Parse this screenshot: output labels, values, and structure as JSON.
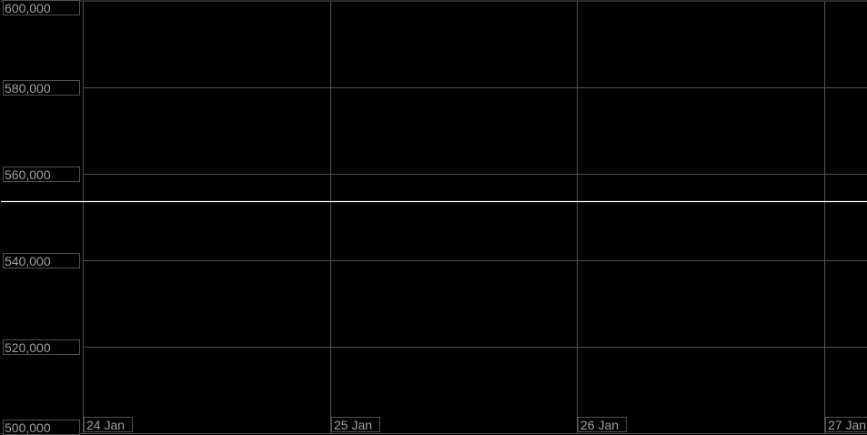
{
  "chart_data": {
    "type": "line",
    "title": "",
    "xlabel": "",
    "ylabel": "",
    "x_tick_labels": [
      "24 Jan",
      "25 Jan",
      "26 Jan",
      "27 Jan"
    ],
    "y_tick_labels": [
      "600,000",
      "580,000",
      "560,000",
      "540,000",
      "520,000",
      "500,000"
    ],
    "y_ticks": [
      600000,
      580000,
      560000,
      540000,
      520000,
      500000
    ],
    "ylim": [
      500000,
      600000
    ],
    "xlim": [
      "24 Jan",
      "27 Jan"
    ],
    "grid": true,
    "series": [
      {
        "x": [
          "24 Jan",
          "27 Jan"
        ],
        "values": [
          553700,
          553700
        ],
        "color": "#ffffff"
      }
    ],
    "colors": {
      "background": "#000000",
      "grid": "#505050",
      "label": "#a0a0a0",
      "line": "#ffffff"
    }
  }
}
